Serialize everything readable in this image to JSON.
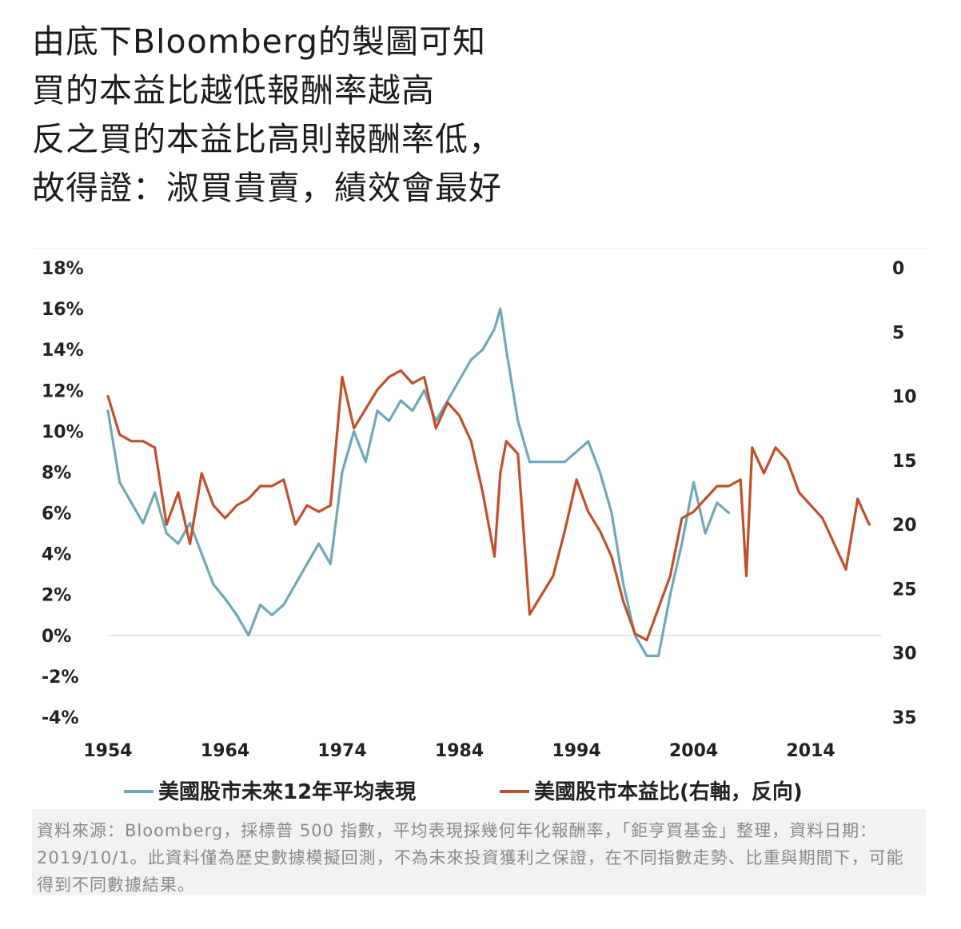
{
  "heading": {
    "lines": [
      "由底下Bloomberg的製圖可知",
      "買的本益比越低報酬率越高",
      "反之買的本益比高則報酬率低，",
      "故得證：淑買貴賣，績效會最好"
    ]
  },
  "footnote": "資料來源：Bloomberg，採標普 500 指數，平均表現採幾何年化報酬率，「鉅亨買基金」整理，資料日期：2019/10/1。此資料僅為歷史數據模擬回測，不為未來投資獲利之保證，在不同指數走勢、比重與期間下，可能得到不同數據結果。",
  "chart_data": {
    "type": "line",
    "x_ticks": [
      "1954",
      "1964",
      "1974",
      "1984",
      "1994",
      "2004",
      "2014"
    ],
    "y_left_ticks": [
      "18%",
      "16%",
      "14%",
      "12%",
      "10%",
      "8%",
      "6%",
      "4%",
      "2%",
      "0%",
      "-2%",
      "-4%"
    ],
    "y_right_ticks": [
      "0",
      "5",
      "10",
      "15",
      "20",
      "25",
      "30",
      "35"
    ],
    "ylim_left": [
      -4,
      18
    ],
    "ylim_right": [
      35,
      0
    ],
    "right_axis_reversed": true,
    "xlim": [
      1954,
      2020
    ],
    "zero_line": true,
    "grid": false,
    "legend_position": "bottom",
    "series": [
      {
        "name": "美國股市未來12年平均表現",
        "axis": "left",
        "color": "#6fa8b8",
        "x": [
          1954,
          1955,
          1956,
          1957,
          1958,
          1959,
          1960,
          1961,
          1962,
          1963,
          1964,
          1965,
          1966,
          1967,
          1968,
          1969,
          1970,
          1971,
          1972,
          1973,
          1974,
          1975,
          1976,
          1977,
          1978,
          1979,
          1980,
          1981,
          1982,
          1983,
          1984,
          1985,
          1986,
          1987,
          1987.5,
          1988,
          1989,
          1990,
          1991,
          1992,
          1993,
          1994,
          1995,
          1996,
          1997,
          1998,
          1999,
          2000,
          2001,
          2002,
          2003,
          2004,
          2005,
          2006,
          2007
        ],
        "y": [
          11.0,
          7.5,
          6.5,
          5.5,
          7.0,
          5.0,
          4.5,
          5.5,
          4.0,
          2.5,
          1.8,
          1.0,
          0.0,
          1.5,
          1.0,
          1.5,
          2.5,
          3.5,
          4.5,
          3.5,
          8.0,
          10.0,
          8.5,
          11.0,
          10.5,
          11.5,
          11.0,
          12.0,
          10.5,
          11.5,
          12.5,
          13.5,
          14.0,
          15.0,
          16.0,
          14.0,
          10.5,
          8.5,
          8.5,
          8.5,
          8.5,
          9.0,
          9.5,
          8.0,
          6.0,
          2.5,
          0.0,
          -1.0,
          -1.0,
          2.0,
          4.5,
          7.5,
          5.0,
          6.5,
          6.0
        ]
      },
      {
        "name": "美國股市本益比(右軸，反向)",
        "axis": "right",
        "color": "#c0502a",
        "x": [
          1954,
          1955,
          1956,
          1957,
          1958,
          1959,
          1960,
          1961,
          1962,
          1963,
          1964,
          1965,
          1966,
          1967,
          1968,
          1969,
          1970,
          1971,
          1972,
          1973,
          1974,
          1975,
          1976,
          1977,
          1978,
          1979,
          1980,
          1981,
          1982,
          1983,
          1984,
          1985,
          1986,
          1987,
          1987.5,
          1988,
          1989,
          1990,
          1991,
          1992,
          1993,
          1994,
          1995,
          1996,
          1997,
          1998,
          1999,
          2000,
          2001,
          2002,
          2003,
          2004,
          2005,
          2006,
          2007,
          2008,
          2008.5,
          2009,
          2010,
          2011,
          2012,
          2013,
          2014,
          2015,
          2016,
          2017,
          2018,
          2019
        ],
        "y": [
          10.0,
          13.0,
          13.5,
          13.5,
          14.0,
          20.0,
          17.5,
          21.5,
          16.0,
          18.5,
          19.5,
          18.5,
          18.0,
          17.0,
          17.0,
          16.5,
          20.0,
          18.5,
          19.0,
          18.5,
          8.5,
          12.5,
          11.0,
          9.5,
          8.5,
          8.0,
          9.0,
          8.5,
          12.5,
          10.5,
          11.5,
          13.5,
          17.5,
          22.5,
          16.0,
          13.5,
          14.5,
          27.0,
          25.5,
          24.0,
          20.5,
          16.5,
          19.0,
          20.5,
          22.5,
          26.0,
          28.5,
          29.0,
          26.5,
          24.0,
          19.5,
          19.0,
          18.0,
          17.0,
          17.0,
          16.5,
          24.0,
          14.0,
          16.0,
          14.0,
          15.0,
          17.5,
          18.5,
          19.5,
          21.5,
          23.5,
          18.0,
          20.0
        ]
      }
    ]
  }
}
